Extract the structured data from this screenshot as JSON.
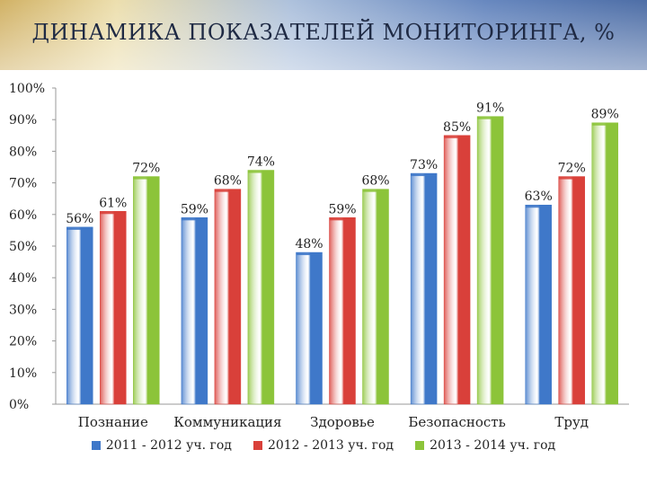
{
  "slide": {
    "title": "ДИНАМИКА ПОКАЗАТЕЛЕЙ МОНИТОРИНГА, %"
  },
  "chart_data": {
    "type": "bar",
    "categories": [
      "Познание",
      "Коммуникация",
      "Здоровье",
      "Безопасность",
      "Труд"
    ],
    "series": [
      {
        "name": "2011 - 2012 уч. год",
        "color": "#3f78c9",
        "values": [
          56,
          59,
          48,
          73,
          63
        ]
      },
      {
        "name": "2012 - 2013 уч. год",
        "color": "#d9403a",
        "values": [
          61,
          68,
          59,
          85,
          72
        ]
      },
      {
        "name": "2013 - 2014 уч. год",
        "color": "#8cc43a",
        "values": [
          72,
          74,
          68,
          91,
          89
        ]
      }
    ],
    "ylim": [
      0,
      100
    ],
    "yticks": [
      "0%",
      "10%",
      "20%",
      "30%",
      "40%",
      "50%",
      "60%",
      "70%",
      "80%",
      "90%",
      "100%"
    ],
    "data_label_suffix": "%",
    "legend_position": "bottom",
    "grid": false
  }
}
